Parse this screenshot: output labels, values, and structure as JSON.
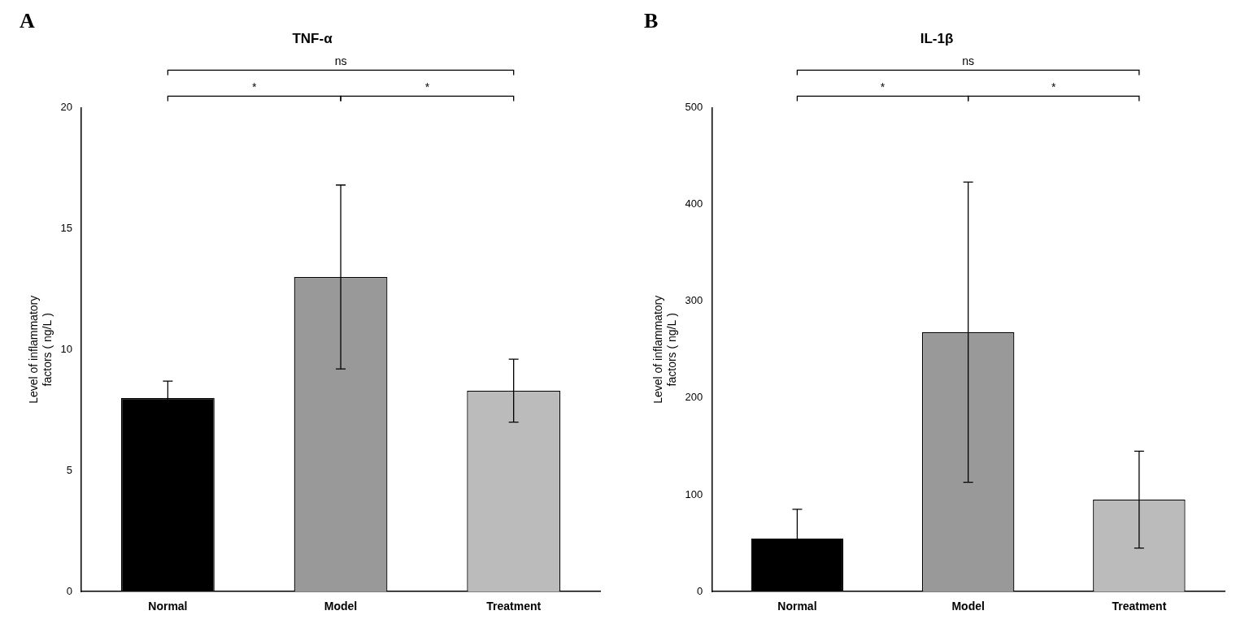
{
  "chart_data": [
    {
      "type": "bar",
      "title": "TNF-α",
      "panel_label": "A",
      "categories": [
        "Normal",
        "Model",
        "Treatment"
      ],
      "values": [
        8.0,
        13.0,
        8.3
      ],
      "errors": [
        0.7,
        3.8,
        1.3
      ],
      "colors": [
        "#000000",
        "#999999",
        "#bbbbbb"
      ],
      "ylabel": "Level of inflammatory\nfactors ( ng/L )",
      "ylim": [
        0,
        20
      ],
      "yticks": [
        0,
        5,
        10,
        15,
        20
      ],
      "grid": false,
      "annotations": [
        {
          "text": "*",
          "x1": "Normal",
          "x2": "Model"
        },
        {
          "text": "*",
          "x1": "Model",
          "x2": "Treatment"
        },
        {
          "text": "ns",
          "x1": "Normal",
          "x2": "Treatment"
        }
      ]
    },
    {
      "type": "bar",
      "title": "IL-1β",
      "panel_label": "B",
      "categories": [
        "Normal",
        "Model",
        "Treatment"
      ],
      "values": [
        55.0,
        268.0,
        95.0
      ],
      "errors": [
        30.0,
        155.0,
        50.0
      ],
      "colors": [
        "#000000",
        "#999999",
        "#bbbbbb"
      ],
      "ylabel": "Level of inflammatory\nfactors ( ng/L )",
      "ylim": [
        0,
        500
      ],
      "yticks": [
        0,
        100,
        200,
        300,
        400,
        500
      ],
      "grid": false,
      "annotations": [
        {
          "text": "*",
          "x1": "Normal",
          "x2": "Model"
        },
        {
          "text": "*",
          "x1": "Model",
          "x2": "Treatment"
        },
        {
          "text": "ns",
          "x1": "Normal",
          "x2": "Treatment"
        }
      ]
    }
  ]
}
